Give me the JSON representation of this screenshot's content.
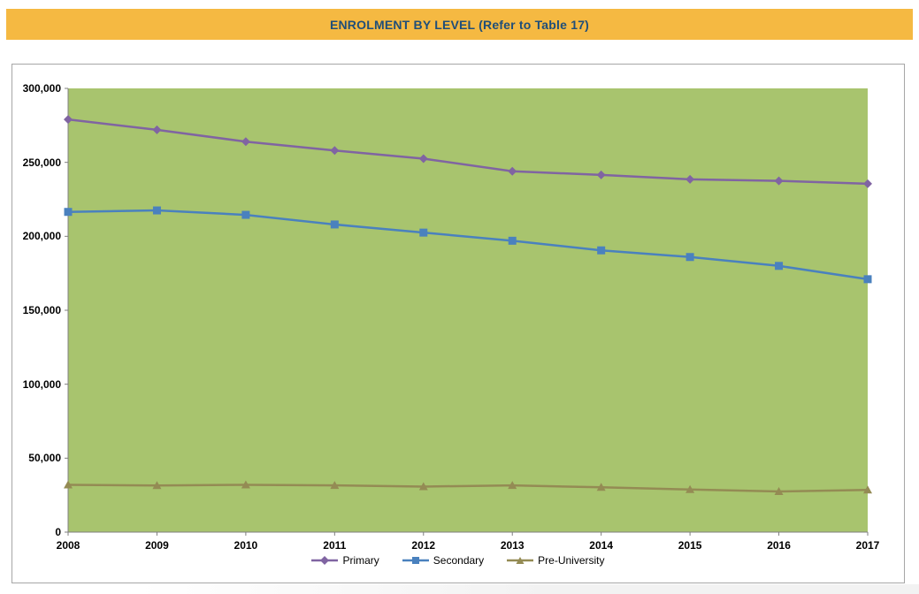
{
  "header": {
    "title": "ENROLMENT BY LEVEL (Refer to Table 17)",
    "banner_color": "#F5B942",
    "title_color": "#1F4E79"
  },
  "chart_data": {
    "type": "line",
    "title": "ENROLMENT BY LEVEL (Refer to Table 17)",
    "categories": [
      "2008",
      "2009",
      "2010",
      "2011",
      "2012",
      "2013",
      "2014",
      "2015",
      "2016",
      "2017"
    ],
    "series": [
      {
        "name": "Primary",
        "color": "#8064A2",
        "marker": "diamond",
        "values": [
          279000,
          272000,
          264000,
          258000,
          252500,
          244000,
          241500,
          238500,
          237500,
          235500
        ]
      },
      {
        "name": "Secondary",
        "color": "#4A81BE",
        "marker": "square",
        "values": [
          216500,
          217500,
          214500,
          208000,
          202500,
          197000,
          190500,
          186000,
          180000,
          171000
        ]
      },
      {
        "name": "Pre-University",
        "color": "#948B54",
        "marker": "triangle",
        "values": [
          32000,
          31500,
          32000,
          31600,
          30800,
          31600,
          30300,
          28800,
          27500,
          28500
        ]
      }
    ],
    "xlabel": "",
    "ylabel": "",
    "ylim": [
      0,
      300000
    ],
    "ytick_step": 50000,
    "ytick_labels": [
      "0",
      "50,000",
      "100,000",
      "150,000",
      "200,000",
      "250,000",
      "300,000"
    ],
    "grid": false,
    "legend_position": "bottom",
    "plot_background": "#A8C46E",
    "axis_color": "#7F7F7F"
  }
}
